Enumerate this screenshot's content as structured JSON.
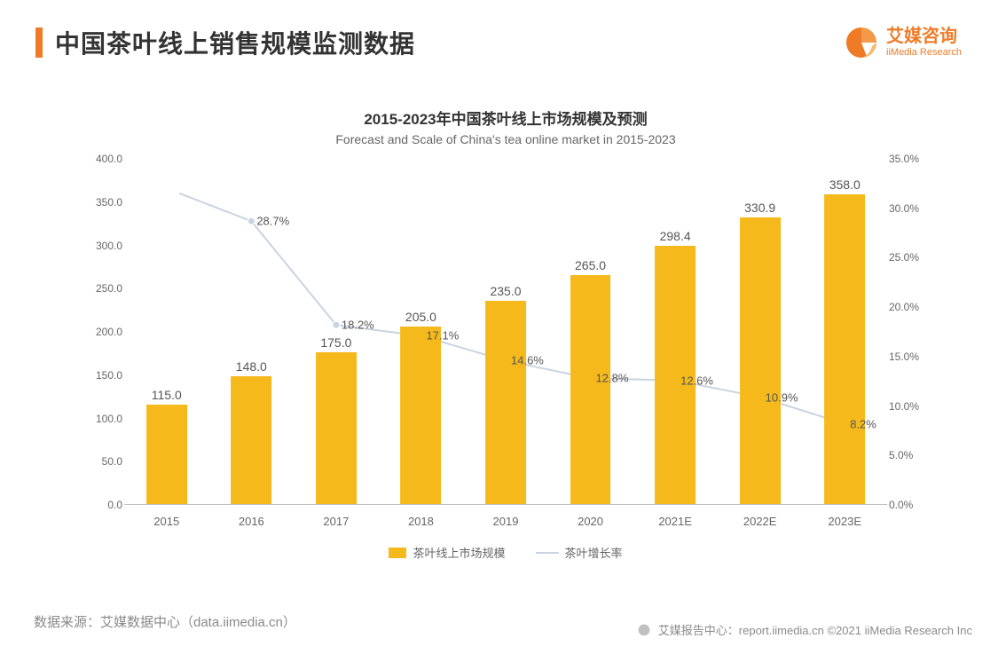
{
  "header": {
    "title": "中国茶叶线上销售规模监测数据",
    "accent_color": "#ef7b26"
  },
  "logo": {
    "cn": "艾媒咨询",
    "en": "iiMedia Research",
    "color": "#ef7b26"
  },
  "chart": {
    "type": "bar+line",
    "title_cn": "2015-2023年中国茶叶线上市场规模及预测",
    "title_en": "Forecast and Scale of China's tea online market in 2015-2023",
    "categories": [
      "2015",
      "2016",
      "2017",
      "2018",
      "2019",
      "2020",
      "2021E",
      "2022E",
      "2023E"
    ],
    "bar_series": {
      "name": "茶叶线上市场规模",
      "values": [
        115.0,
        148.0,
        175.0,
        205.0,
        235.0,
        265.0,
        298.4,
        330.9,
        358.0
      ],
      "value_labels": [
        "115.0",
        "148.0",
        "175.0",
        "205.0",
        "235.0",
        "265.0",
        "298.4",
        "330.9",
        "358.0"
      ],
      "color": "#f5b91c",
      "bar_width_ratio": 0.48
    },
    "line_series": {
      "name": "茶叶增长率",
      "values": [
        null,
        28.7,
        18.2,
        17.1,
        14.6,
        12.8,
        12.6,
        10.9,
        8.2
      ],
      "value_labels": [
        null,
        "28.7%",
        "18.2%",
        "17.1%",
        "14.6%",
        "12.8%",
        "12.6%",
        "10.9%",
        "8.2%"
      ],
      "color": "#c9d4e2",
      "marker_size": 4
    },
    "y_left": {
      "min": 0,
      "max": 400,
      "step": 50,
      "format": ".1f"
    },
    "y_right": {
      "min": 0,
      "max": 35,
      "step": 5,
      "suffix": "%",
      "format": ".1f"
    },
    "grid_color": "#e6e6e6",
    "axis_color": "#bfbfbf",
    "label_color": "#666666",
    "background": "#ffffff"
  },
  "footer": {
    "source": "数据来源：艾媒数据中心（data.iimedia.cn）",
    "right": "艾媒报告中心：report.iimedia.cn   ©2021  iiMedia Research  Inc"
  }
}
